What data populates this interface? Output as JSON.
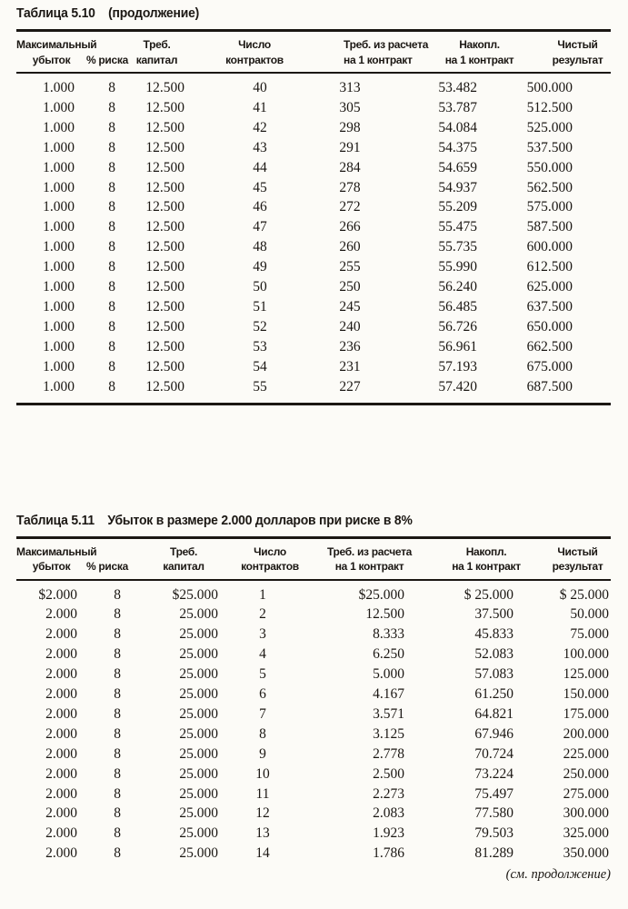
{
  "page": {
    "background": "#fcfbf7",
    "ink_color": "#1b1713",
    "continuation_note": "(см. продолжение)"
  },
  "tables": [
    {
      "title_label": "Таблица 5.10",
      "title_rest": "(продолжение)",
      "headers": [
        [
          "Максимальный",
          "убыток"
        ],
        [
          "% риска"
        ],
        [
          "Треб.",
          "капитал"
        ],
        [
          "Число",
          "контрактов"
        ],
        [
          "Треб. из расчета",
          "на 1 контракт"
        ],
        [
          "Накопл.",
          "на 1 контракт"
        ],
        [
          "Чистый",
          "результат"
        ]
      ],
      "rows": [
        [
          "1.000",
          "8",
          "12.500",
          "40",
          "313",
          "53.482",
          "500.000"
        ],
        [
          "1.000",
          "8",
          "12.500",
          "41",
          "305",
          "53.787",
          "512.500"
        ],
        [
          "1.000",
          "8",
          "12.500",
          "42",
          "298",
          "54.084",
          "525.000"
        ],
        [
          "1.000",
          "8",
          "12.500",
          "43",
          "291",
          "54.375",
          "537.500"
        ],
        [
          "1.000",
          "8",
          "12.500",
          "44",
          "284",
          "54.659",
          "550.000"
        ],
        [
          "1.000",
          "8",
          "12.500",
          "45",
          "278",
          "54.937",
          "562.500"
        ],
        [
          "1.000",
          "8",
          "12.500",
          "46",
          "272",
          "55.209",
          "575.000"
        ],
        [
          "1.000",
          "8",
          "12.500",
          "47",
          "266",
          "55.475",
          "587.500"
        ],
        [
          "1.000",
          "8",
          "12.500",
          "48",
          "260",
          "55.735",
          "600.000"
        ],
        [
          "1.000",
          "8",
          "12.500",
          "49",
          "255",
          "55.990",
          "612.500"
        ],
        [
          "1.000",
          "8",
          "12.500",
          "50",
          "250",
          "56.240",
          "625.000"
        ],
        [
          "1.000",
          "8",
          "12.500",
          "51",
          "245",
          "56.485",
          "637.500"
        ],
        [
          "1.000",
          "8",
          "12.500",
          "52",
          "240",
          "56.726",
          "650.000"
        ],
        [
          "1.000",
          "8",
          "12.500",
          "53",
          "236",
          "56.961",
          "662.500"
        ],
        [
          "1.000",
          "8",
          "12.500",
          "54",
          "231",
          "57.193",
          "675.000"
        ],
        [
          "1.000",
          "8",
          "12.500",
          "55",
          "227",
          "57.420",
          "687.500"
        ]
      ]
    },
    {
      "title_label": "Таблица 5.11",
      "title_rest": "Убыток в размере 2.000 долларов при риске в 8%",
      "headers": [
        [
          "Максимальный",
          "убыток"
        ],
        [
          "% риска"
        ],
        [
          "Треб.",
          "капитал"
        ],
        [
          "Число",
          "контрактов"
        ],
        [
          "Треб. из расчета",
          "на 1 контракт"
        ],
        [
          "Накопл.",
          "на 1 контракт"
        ],
        [
          "Чистый",
          "результат"
        ]
      ],
      "rows": [
        [
          "$2.000",
          "8",
          "$25.000",
          "1",
          "$25.000",
          "$ 25.000",
          "$ 25.000"
        ],
        [
          "2.000",
          "8",
          "25.000",
          "2",
          "12.500",
          "37.500",
          "50.000"
        ],
        [
          "2.000",
          "8",
          "25.000",
          "3",
          "8.333",
          "45.833",
          "75.000"
        ],
        [
          "2.000",
          "8",
          "25.000",
          "4",
          "6.250",
          "52.083",
          "100.000"
        ],
        [
          "2.000",
          "8",
          "25.000",
          "5",
          "5.000",
          "57.083",
          "125.000"
        ],
        [
          "2.000",
          "8",
          "25.000",
          "6",
          "4.167",
          "61.250",
          "150.000"
        ],
        [
          "2.000",
          "8",
          "25.000",
          "7",
          "3.571",
          "64.821",
          "175.000"
        ],
        [
          "2.000",
          "8",
          "25.000",
          "8",
          "3.125",
          "67.946",
          "200.000"
        ],
        [
          "2.000",
          "8",
          "25.000",
          "9",
          "2.778",
          "70.724",
          "225.000"
        ],
        [
          "2.000",
          "8",
          "25.000",
          "10",
          "2.500",
          "73.224",
          "250.000"
        ],
        [
          "2.000",
          "8",
          "25.000",
          "11",
          "2.273",
          "75.497",
          "275.000"
        ],
        [
          "2.000",
          "8",
          "25.000",
          "12",
          "2.083",
          "77.580",
          "300.000"
        ],
        [
          "2.000",
          "8",
          "25.000",
          "13",
          "1.923",
          "79.503",
          "325.000"
        ],
        [
          "2.000",
          "8",
          "25.000",
          "14",
          "1.786",
          "81.289",
          "350.000"
        ]
      ]
    }
  ]
}
